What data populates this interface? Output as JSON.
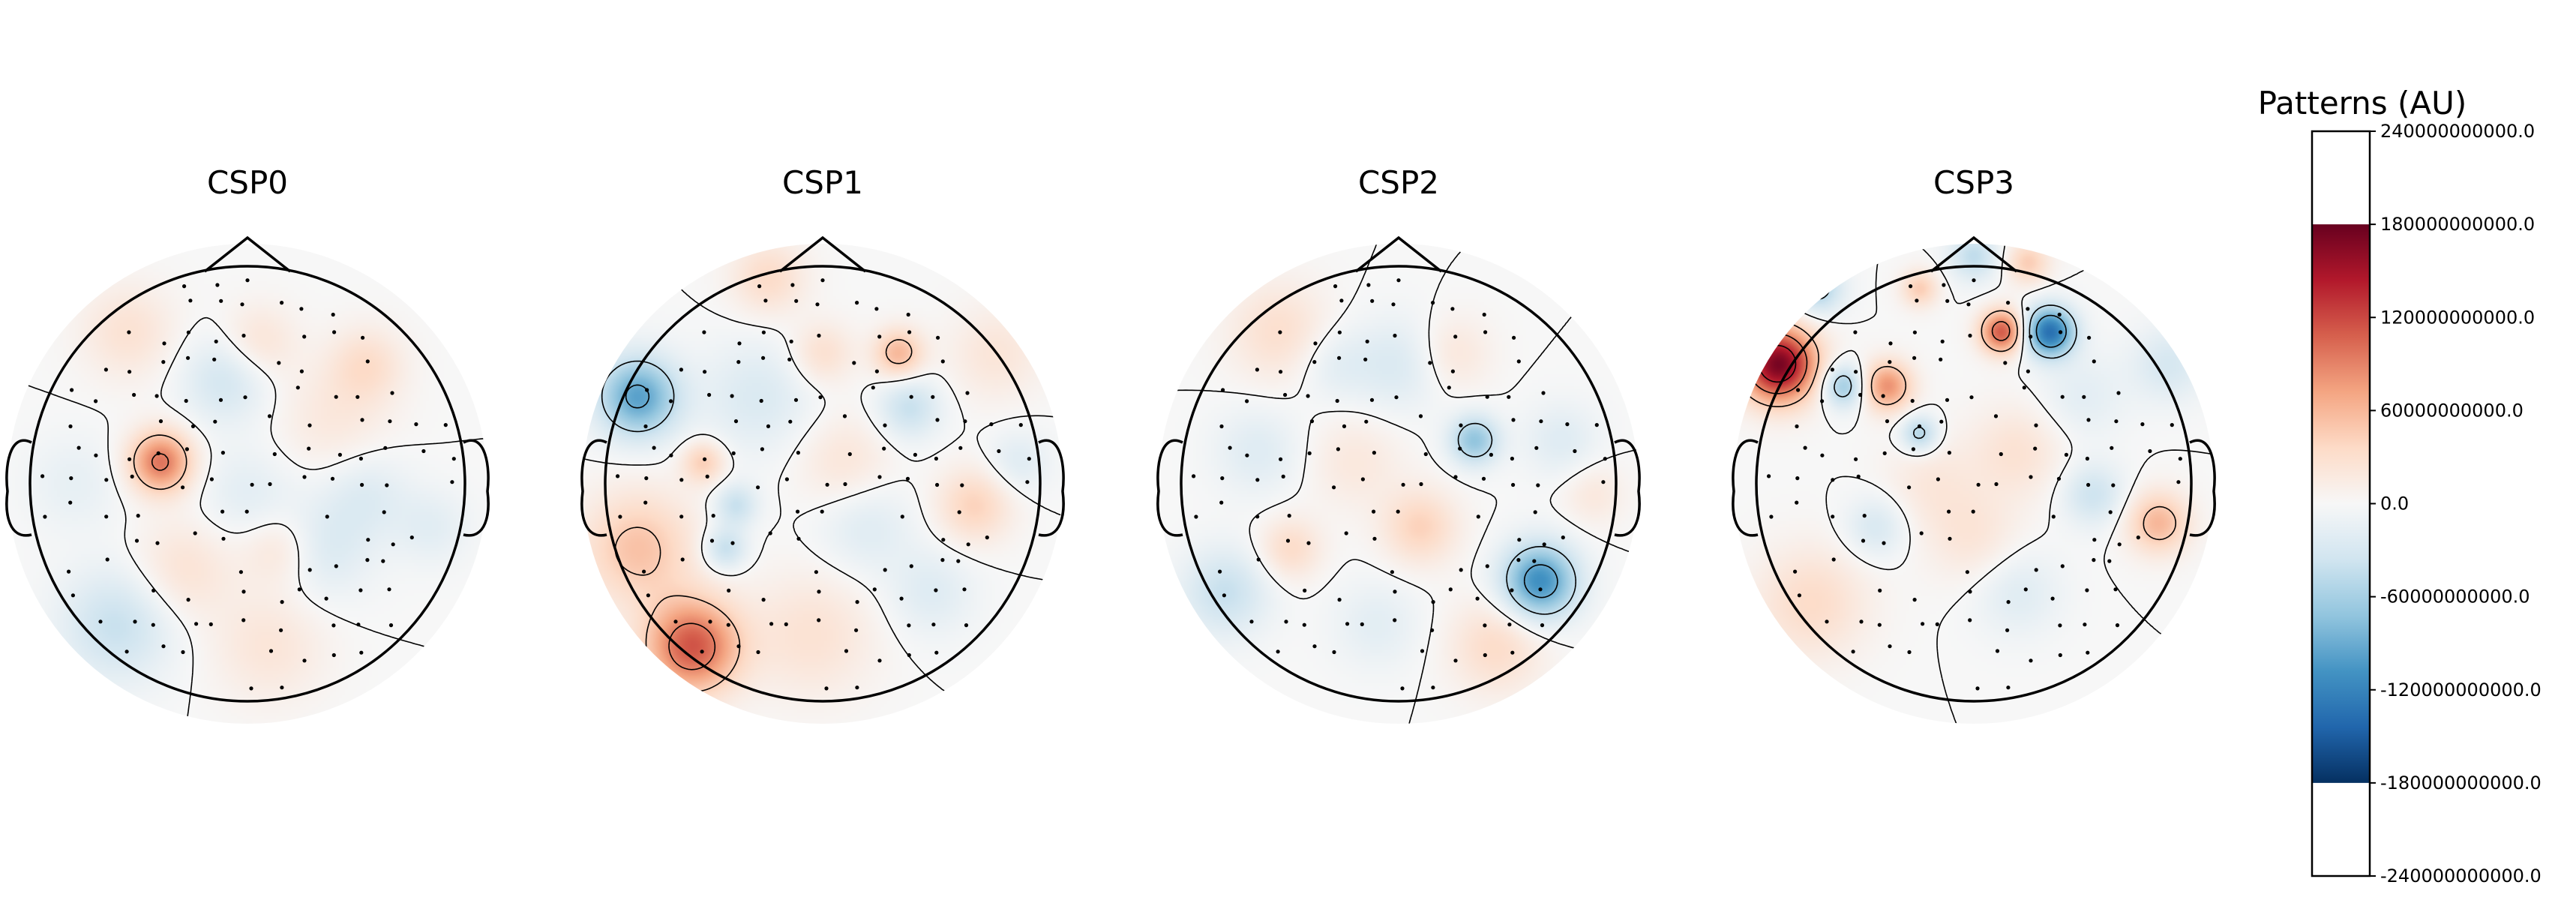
{
  "chart_data": {
    "type": "heatmap",
    "panels": [
      {
        "title": "CSP0",
        "blobs": [
          {
            "x": -0.4,
            "y": 0.1,
            "v": 130,
            "s": 0.1
          },
          {
            "x": -0.1,
            "y": 0.48,
            "v": -45,
            "s": 0.14
          },
          {
            "x": 0.05,
            "y": 0.65,
            "v": 35,
            "s": 0.12
          },
          {
            "x": 0.4,
            "y": 0.3,
            "v": 25,
            "s": 0.18
          },
          {
            "x": 0.35,
            "y": -0.3,
            "v": -35,
            "s": 0.16
          },
          {
            "x": -0.3,
            "y": -0.4,
            "v": 35,
            "s": 0.16
          },
          {
            "x": -0.6,
            "y": -0.65,
            "v": -55,
            "s": 0.18
          },
          {
            "x": 0.15,
            "y": -0.3,
            "v": 35,
            "s": 0.12
          },
          {
            "x": 0.1,
            "y": -0.75,
            "v": 30,
            "s": 0.18
          },
          {
            "x": -0.55,
            "y": 0.7,
            "v": 35,
            "s": 0.15
          },
          {
            "x": 0.55,
            "y": 0.55,
            "v": 40,
            "s": 0.12
          },
          {
            "x": 0.55,
            "y": -0.05,
            "v": -30,
            "s": 0.14
          },
          {
            "x": 0.85,
            "y": -0.2,
            "v": -25,
            "s": 0.12
          },
          {
            "x": -0.8,
            "y": 0.0,
            "v": -20,
            "s": 0.15
          },
          {
            "x": 0.0,
            "y": -0.05,
            "v": -25,
            "s": 0.15
          }
        ]
      },
      {
        "title": "CSP1",
        "blobs": [
          {
            "x": -0.85,
            "y": 0.4,
            "v": -130,
            "s": 0.13
          },
          {
            "x": -0.6,
            "y": -0.75,
            "v": 150,
            "s": 0.15
          },
          {
            "x": -0.85,
            "y": -0.3,
            "v": 70,
            "s": 0.18
          },
          {
            "x": 0.35,
            "y": 0.6,
            "v": 80,
            "s": 0.08
          },
          {
            "x": 0.0,
            "y": 0.6,
            "v": 40,
            "s": 0.1
          },
          {
            "x": -0.4,
            "y": -0.1,
            "v": -55,
            "s": 0.07
          },
          {
            "x": -0.45,
            "y": -0.3,
            "v": -60,
            "s": 0.07
          },
          {
            "x": -0.55,
            "y": 0.1,
            "v": 60,
            "s": 0.07
          },
          {
            "x": 0.4,
            "y": 0.35,
            "v": -55,
            "s": 0.1
          },
          {
            "x": -0.3,
            "y": 0.4,
            "v": -35,
            "s": 0.18
          },
          {
            "x": 0.7,
            "y": -0.1,
            "v": 55,
            "s": 0.12
          },
          {
            "x": 0.9,
            "y": 0.1,
            "v": -30,
            "s": 0.1
          },
          {
            "x": 0.2,
            "y": -0.2,
            "v": -30,
            "s": 0.15
          },
          {
            "x": 0.5,
            "y": -0.5,
            "v": -30,
            "s": 0.14
          },
          {
            "x": -0.05,
            "y": -0.7,
            "v": 35,
            "s": 0.2
          },
          {
            "x": -0.25,
            "y": 0.95,
            "v": 45,
            "s": 0.12
          },
          {
            "x": 0.8,
            "y": 0.6,
            "v": 30,
            "s": 0.15
          },
          {
            "x": 0.1,
            "y": 0.1,
            "v": 30,
            "s": 0.15
          }
        ]
      },
      {
        "title": "CSP2",
        "blobs": [
          {
            "x": 0.65,
            "y": -0.45,
            "v": -150,
            "s": 0.12
          },
          {
            "x": 0.35,
            "y": 0.2,
            "v": -95,
            "s": 0.08
          },
          {
            "x": 0.1,
            "y": -0.2,
            "v": 55,
            "s": 0.12
          },
          {
            "x": -0.5,
            "y": -0.3,
            "v": 45,
            "s": 0.1
          },
          {
            "x": -0.8,
            "y": -0.5,
            "v": -55,
            "s": 0.14
          },
          {
            "x": -0.55,
            "y": 0.7,
            "v": 40,
            "s": 0.16
          },
          {
            "x": 0.0,
            "y": 0.55,
            "v": -35,
            "s": 0.15
          },
          {
            "x": -0.3,
            "y": 0.55,
            "v": -25,
            "s": 0.12
          },
          {
            "x": -0.65,
            "y": 0.15,
            "v": -30,
            "s": 0.14
          },
          {
            "x": -0.2,
            "y": 0.1,
            "v": 25,
            "s": 0.15
          },
          {
            "x": 0.45,
            "y": -0.75,
            "v": 45,
            "s": 0.15
          },
          {
            "x": -0.1,
            "y": -0.65,
            "v": -25,
            "s": 0.14
          },
          {
            "x": 0.75,
            "y": 0.2,
            "v": -30,
            "s": 0.12
          },
          {
            "x": 0.25,
            "y": 0.6,
            "v": 30,
            "s": 0.12
          },
          {
            "x": 0.9,
            "y": -0.05,
            "v": 25,
            "s": 0.1
          }
        ]
      },
      {
        "title": "CSP3",
        "blobs": [
          {
            "x": -0.9,
            "y": 0.55,
            "v": 230,
            "s": 0.12
          },
          {
            "x": 0.35,
            "y": 0.7,
            "v": -180,
            "s": 0.08
          },
          {
            "x": 0.13,
            "y": 0.7,
            "v": 150,
            "s": 0.07
          },
          {
            "x": -0.4,
            "y": 0.45,
            "v": 110,
            "s": 0.08
          },
          {
            "x": -0.6,
            "y": 0.45,
            "v": -90,
            "s": 0.07
          },
          {
            "x": -0.25,
            "y": 0.23,
            "v": -75,
            "s": 0.06
          },
          {
            "x": -0.72,
            "y": 0.9,
            "v": -80,
            "s": 0.08
          },
          {
            "x": -0.25,
            "y": 0.9,
            "v": 60,
            "s": 0.06
          },
          {
            "x": 0.0,
            "y": 1.05,
            "v": -60,
            "s": 0.08
          },
          {
            "x": 0.25,
            "y": 1.02,
            "v": 60,
            "s": 0.07
          },
          {
            "x": 0.85,
            "y": -0.18,
            "v": 80,
            "s": 0.1
          },
          {
            "x": 0.55,
            "y": -0.05,
            "v": -50,
            "s": 0.1
          },
          {
            "x": -0.45,
            "y": -0.2,
            "v": -40,
            "s": 0.1
          },
          {
            "x": 0.0,
            "y": -0.25,
            "v": 30,
            "s": 0.15
          },
          {
            "x": -0.75,
            "y": -0.55,
            "v": 45,
            "s": 0.18
          },
          {
            "x": 0.2,
            "y": -0.5,
            "v": -30,
            "s": 0.14
          },
          {
            "x": 0.2,
            "y": 0.15,
            "v": 35,
            "s": 0.15
          },
          {
            "x": 0.9,
            "y": 0.55,
            "v": -40,
            "s": 0.12
          },
          {
            "x": -0.2,
            "y": 0.0,
            "v": 25,
            "s": 0.15
          },
          {
            "x": 0.5,
            "y": 0.4,
            "v": -25,
            "s": 0.14
          }
        ]
      }
    ],
    "value_scale": 1000000000,
    "vmin": -240000000000,
    "vmax": 240000000000,
    "colormap": "RdBu_r",
    "colorbar": {
      "title": "Patterns (AU)",
      "ticks": [
        {
          "value": 240,
          "label": "240000000000.0"
        },
        {
          "value": 180,
          "label": "180000000000.0"
        },
        {
          "value": 120,
          "label": "120000000000.0"
        },
        {
          "value": 60,
          "label": "60000000000.0"
        },
        {
          "value": 0,
          "label": "0.0"
        },
        {
          "value": -60,
          "label": "-60000000000.0"
        },
        {
          "value": -120,
          "label": "-120000000000.0"
        },
        {
          "value": -180,
          "label": "-180000000000.0"
        },
        {
          "value": -240,
          "label": "-240000000000.0"
        }
      ]
    }
  }
}
